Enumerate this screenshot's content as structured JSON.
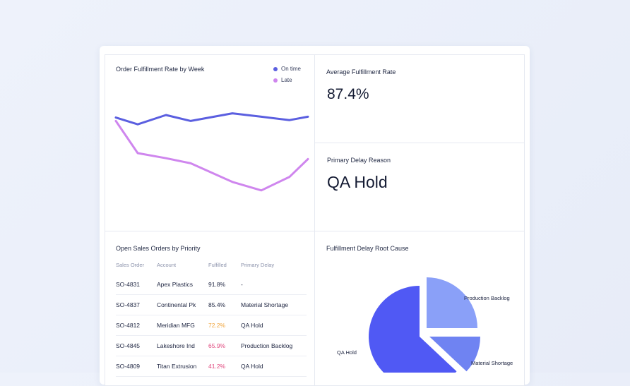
{
  "line_panel": {
    "title": "Order Fulfillment Rate by Week",
    "legend": [
      {
        "label": "On time",
        "color": "#5b5fe0"
      },
      {
        "label": "Late",
        "color": "#cf86ee"
      }
    ]
  },
  "avg_panel": {
    "title": "Average Fulfillment Rate",
    "value": "87.4%"
  },
  "delay_panel": {
    "title": "Primary Delay Reason",
    "value": "QA Hold"
  },
  "table_panel": {
    "title": "Open Sales Orders by Priority",
    "columns": [
      "Sales Order",
      "Account",
      "Fulfilled",
      "Primary Delay"
    ],
    "rows": [
      {
        "order": "SO-4831",
        "account": "Apex Plastics",
        "fulfilled": "91.8%",
        "delay": "-",
        "color": "#1d2440"
      },
      {
        "order": "SO-4837",
        "account": "Continental Pk",
        "fulfilled": "85.4%",
        "delay": "Material Shortage",
        "color": "#1d2440"
      },
      {
        "order": "SO-4812",
        "account": "Meridian MFG",
        "fulfilled": "72.2%",
        "delay": "QA Hold",
        "color": "#f0a43a"
      },
      {
        "order": "SO-4845",
        "account": "Lakeshore Ind",
        "fulfilled": "65.9%",
        "delay": "Production Backlog",
        "color": "#e0487e"
      },
      {
        "order": "SO-4809",
        "account": "Titan Extrusion",
        "fulfilled": "41.2%",
        "delay": "QA Hold",
        "color": "#e0487e"
      }
    ]
  },
  "pie_panel": {
    "title": "Fulfillment Delay Root Cause"
  },
  "chart_data": [
    {
      "type": "line",
      "title": "Order Fulfillment Rate by Week",
      "x": [
        1,
        2,
        3,
        4,
        5,
        6,
        7,
        8
      ],
      "series": [
        {
          "name": "On time",
          "values": [
            72,
            64,
            75,
            68,
            77,
            73,
            69,
            73
          ]
        },
        {
          "name": "Late",
          "values": [
            68,
            30,
            24,
            18,
            -4,
            -14,
            2,
            23
          ]
        }
      ],
      "grid": false,
      "legend_position": "top-right"
    },
    {
      "type": "pie",
      "title": "Fulfillment Delay Root Cause",
      "slices": [
        {
          "label": "Production Backlog",
          "value": 25,
          "color": "#8aa0f8"
        },
        {
          "label": "Material Shortage",
          "value": 12,
          "color": "#6f83f2"
        },
        {
          "label": "QA Hold",
          "value": 63,
          "color": "#5059f4"
        }
      ],
      "exploded": true
    }
  ]
}
